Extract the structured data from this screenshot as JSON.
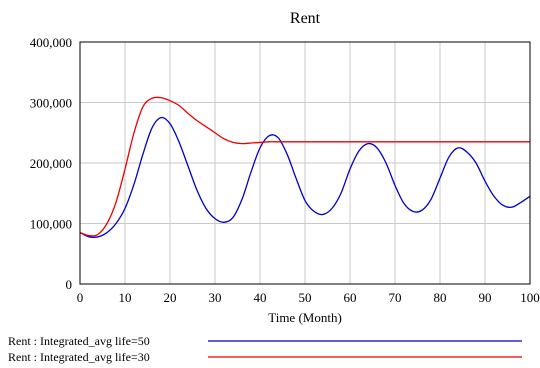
{
  "chart_data": {
    "type": "line",
    "title": "Rent",
    "xlabel": "Time (Month)",
    "ylabel": "",
    "xlim": [
      0,
      100
    ],
    "ylim": [
      0,
      400000
    ],
    "x_ticks": [
      0,
      10,
      20,
      30,
      40,
      50,
      60,
      70,
      80,
      90,
      100
    ],
    "y_ticks": [
      0,
      100000,
      200000,
      300000,
      400000
    ],
    "x_tick_labels": [
      "0",
      "10",
      "20",
      "30",
      "40",
      "50",
      "60",
      "70",
      "80",
      "90",
      "100"
    ],
    "y_tick_labels": [
      "0",
      "100,000",
      "200,000",
      "300,000",
      "400,000"
    ],
    "grid": true,
    "legend_position": "bottom",
    "series": [
      {
        "name": "Rent : Integrated_avg life=50",
        "color": "#0000cc",
        "x": [
          0,
          2,
          4,
          6,
          8,
          10,
          12,
          14,
          16,
          18,
          20,
          22,
          24,
          26,
          28,
          30,
          32,
          34,
          36,
          38,
          40,
          42,
          44,
          46,
          48,
          50,
          52,
          54,
          56,
          58,
          60,
          62,
          64,
          66,
          68,
          70,
          72,
          74,
          76,
          78,
          80,
          82,
          84,
          86,
          88,
          90,
          92,
          94,
          96,
          98,
          100
        ],
        "y": [
          85000,
          78000,
          78000,
          85000,
          100000,
          125000,
          165000,
          215000,
          258000,
          275000,
          265000,
          235000,
          195000,
          155000,
          125000,
          108000,
          102000,
          110000,
          140000,
          185000,
          225000,
          245000,
          242000,
          215000,
          175000,
          138000,
          120000,
          115000,
          125000,
          150000,
          190000,
          220000,
          232000,
          225000,
          200000,
          163000,
          133000,
          120000,
          122000,
          140000,
          175000,
          210000,
          225000,
          218000,
          200000,
          170000,
          145000,
          130000,
          127000,
          135000,
          145000
        ]
      },
      {
        "name": "Rent : Integrated_avg life=30",
        "color": "#ee0000",
        "x": [
          0,
          2,
          4,
          6,
          8,
          10,
          12,
          14,
          16,
          18,
          20,
          22,
          24,
          26,
          28,
          30,
          32,
          34,
          36,
          38,
          40,
          42,
          44,
          46,
          50,
          60,
          70,
          80,
          90,
          100
        ],
        "y": [
          85000,
          80000,
          82000,
          100000,
          135000,
          190000,
          250000,
          293000,
          307000,
          308000,
          303000,
          295000,
          282000,
          270000,
          260000,
          250000,
          240000,
          234000,
          232000,
          233000,
          234000,
          235000,
          235000,
          235000,
          235000,
          235000,
          235000,
          235000,
          235000,
          235000
        ]
      }
    ]
  }
}
